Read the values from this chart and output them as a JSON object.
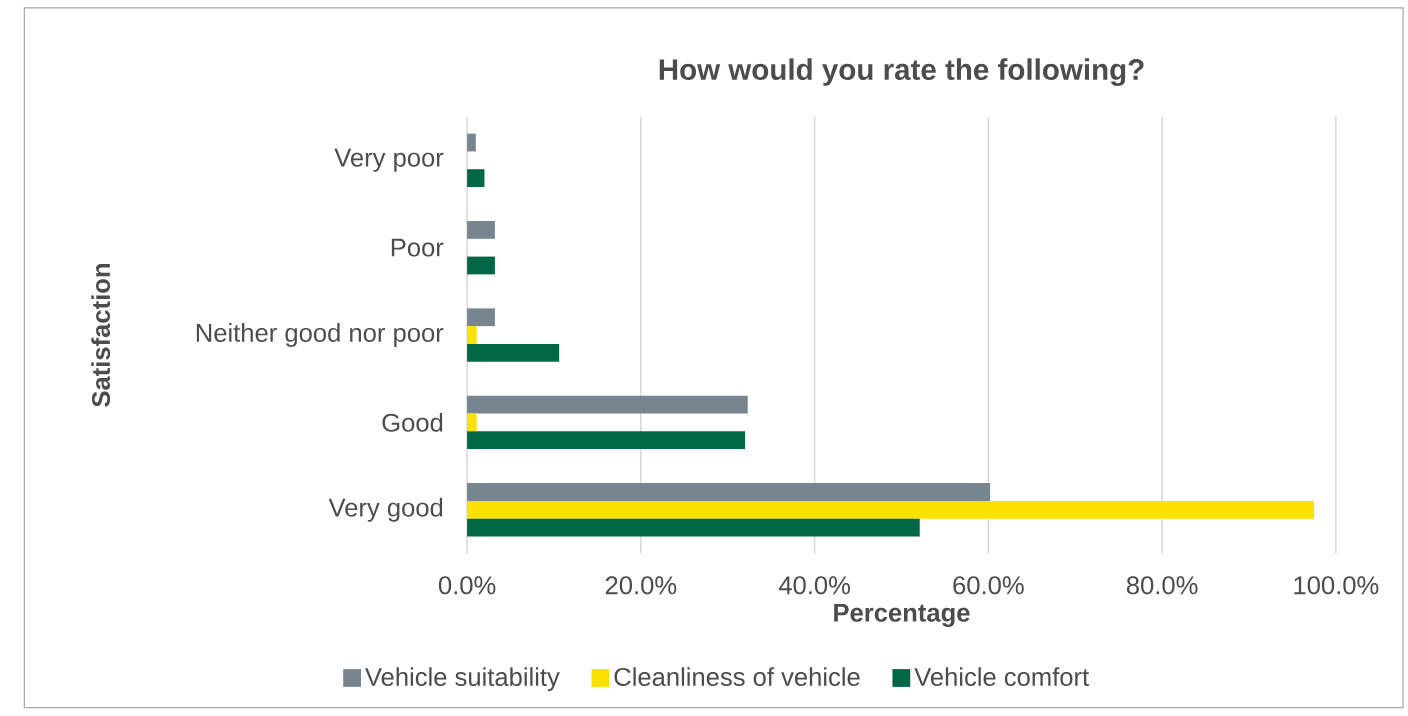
{
  "chart_data": {
    "type": "bar",
    "orientation": "horizontal",
    "title": "How would you rate the following?",
    "xlabel": "Percentage",
    "ylabel": "Satisfaction",
    "categories": [
      "Very poor",
      "Poor",
      "Neither good nor poor",
      "Good",
      "Very good"
    ],
    "series": [
      {
        "name": "Vehicle suitability",
        "color": "#778591",
        "values": [
          1.0,
          3.2,
          3.2,
          32.3,
          60.2
        ]
      },
      {
        "name": "Cleanliness of vehicle",
        "color": "#fae100",
        "values": [
          null,
          null,
          1.1,
          1.1,
          97.5
        ]
      },
      {
        "name": "Vehicle comfort",
        "color": "#006747",
        "values": [
          2.0,
          3.2,
          10.6,
          32.0,
          52.1
        ]
      }
    ],
    "xlim": [
      0,
      100
    ],
    "xticks": [
      {
        "value": 0,
        "label": "0.0%"
      },
      {
        "value": 20,
        "label": "20.0%"
      },
      {
        "value": 40,
        "label": "40.0%"
      },
      {
        "value": 60,
        "label": "60.0%"
      },
      {
        "value": 80,
        "label": "80.0%"
      },
      {
        "value": 100,
        "label": "100.0%"
      }
    ],
    "grid": "x",
    "legend": "bottom"
  }
}
